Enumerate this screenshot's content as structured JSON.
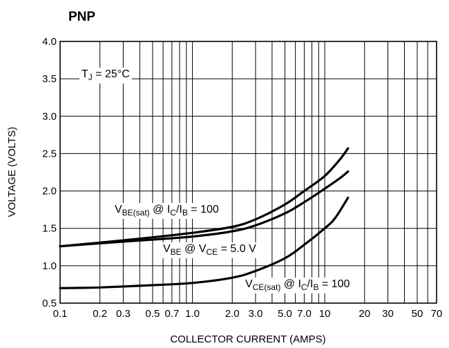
{
  "chart_data": {
    "type": "line",
    "title": "PNP",
    "xlabel": "COLLECTOR CURRENT (AMPS)",
    "ylabel": "VOLTAGE (VOLTS)",
    "xscale": "log",
    "xlim": [
      0.1,
      70
    ],
    "ylim": [
      0.5,
      4.0
    ],
    "grid": true,
    "xticks": [
      0.1,
      0.2,
      0.3,
      0.5,
      0.7,
      1.0,
      2.0,
      3.0,
      5.0,
      7.0,
      10,
      20,
      30,
      50,
      70
    ],
    "xtick_labels": [
      "0.1",
      "0.2",
      "0.3",
      "0.5",
      "0.7",
      "1.0",
      "2.0",
      "3.0",
      "5.0",
      "7.0",
      "10",
      "20",
      "30",
      "50",
      "70"
    ],
    "yticks": [
      0.5,
      1.0,
      1.5,
      2.0,
      2.5,
      3.0,
      3.5,
      4.0
    ],
    "ytick_labels": [
      "0.5",
      "1.0",
      "1.5",
      "2.0",
      "2.5",
      "3.0",
      "3.5",
      "4.0"
    ],
    "annotation": {
      "main": "T",
      "sub": "J",
      "rest": " = 25°C"
    },
    "series": [
      {
        "label_parts": [
          {
            "t": "V",
            "s": false
          },
          {
            "t": "BE(sat)",
            "s": true
          },
          {
            "t": " @ I",
            "s": false
          },
          {
            "t": "C",
            "s": true
          },
          {
            "t": "/I",
            "s": false
          },
          {
            "t": "B",
            "s": true
          },
          {
            "t": " = 100",
            "s": false
          }
        ],
        "x": [
          0.1,
          0.2,
          0.5,
          1.0,
          2.0,
          3.0,
          5.0,
          7.0,
          10,
          13,
          15
        ],
        "y": [
          1.26,
          1.31,
          1.38,
          1.44,
          1.52,
          1.62,
          1.82,
          2.0,
          2.2,
          2.42,
          2.57
        ]
      },
      {
        "label_parts": [
          {
            "t": "V",
            "s": false
          },
          {
            "t": "BE",
            "s": true
          },
          {
            "t": " @ V",
            "s": false
          },
          {
            "t": "CE",
            "s": true
          },
          {
            "t": " = 5.0 V",
            "s": false
          }
        ],
        "x": [
          0.1,
          0.2,
          0.5,
          1.0,
          2.0,
          3.0,
          5.0,
          7.0,
          10,
          13,
          15
        ],
        "y": [
          1.26,
          1.3,
          1.35,
          1.39,
          1.46,
          1.54,
          1.7,
          1.85,
          2.03,
          2.17,
          2.26
        ]
      },
      {
        "label_parts": [
          {
            "t": "V",
            "s": false
          },
          {
            "t": "CE(sat)",
            "s": true
          },
          {
            "t": " @ I",
            "s": false
          },
          {
            "t": "C",
            "s": true
          },
          {
            "t": "/I",
            "s": false
          },
          {
            "t": "B",
            "s": true
          },
          {
            "t": " = 100",
            "s": false
          }
        ],
        "x": [
          0.1,
          0.2,
          0.5,
          1.0,
          2.0,
          3.0,
          5.0,
          7.0,
          10,
          12,
          15
        ],
        "y": [
          0.7,
          0.71,
          0.74,
          0.77,
          0.84,
          0.93,
          1.1,
          1.28,
          1.5,
          1.64,
          1.91
        ]
      }
    ]
  }
}
